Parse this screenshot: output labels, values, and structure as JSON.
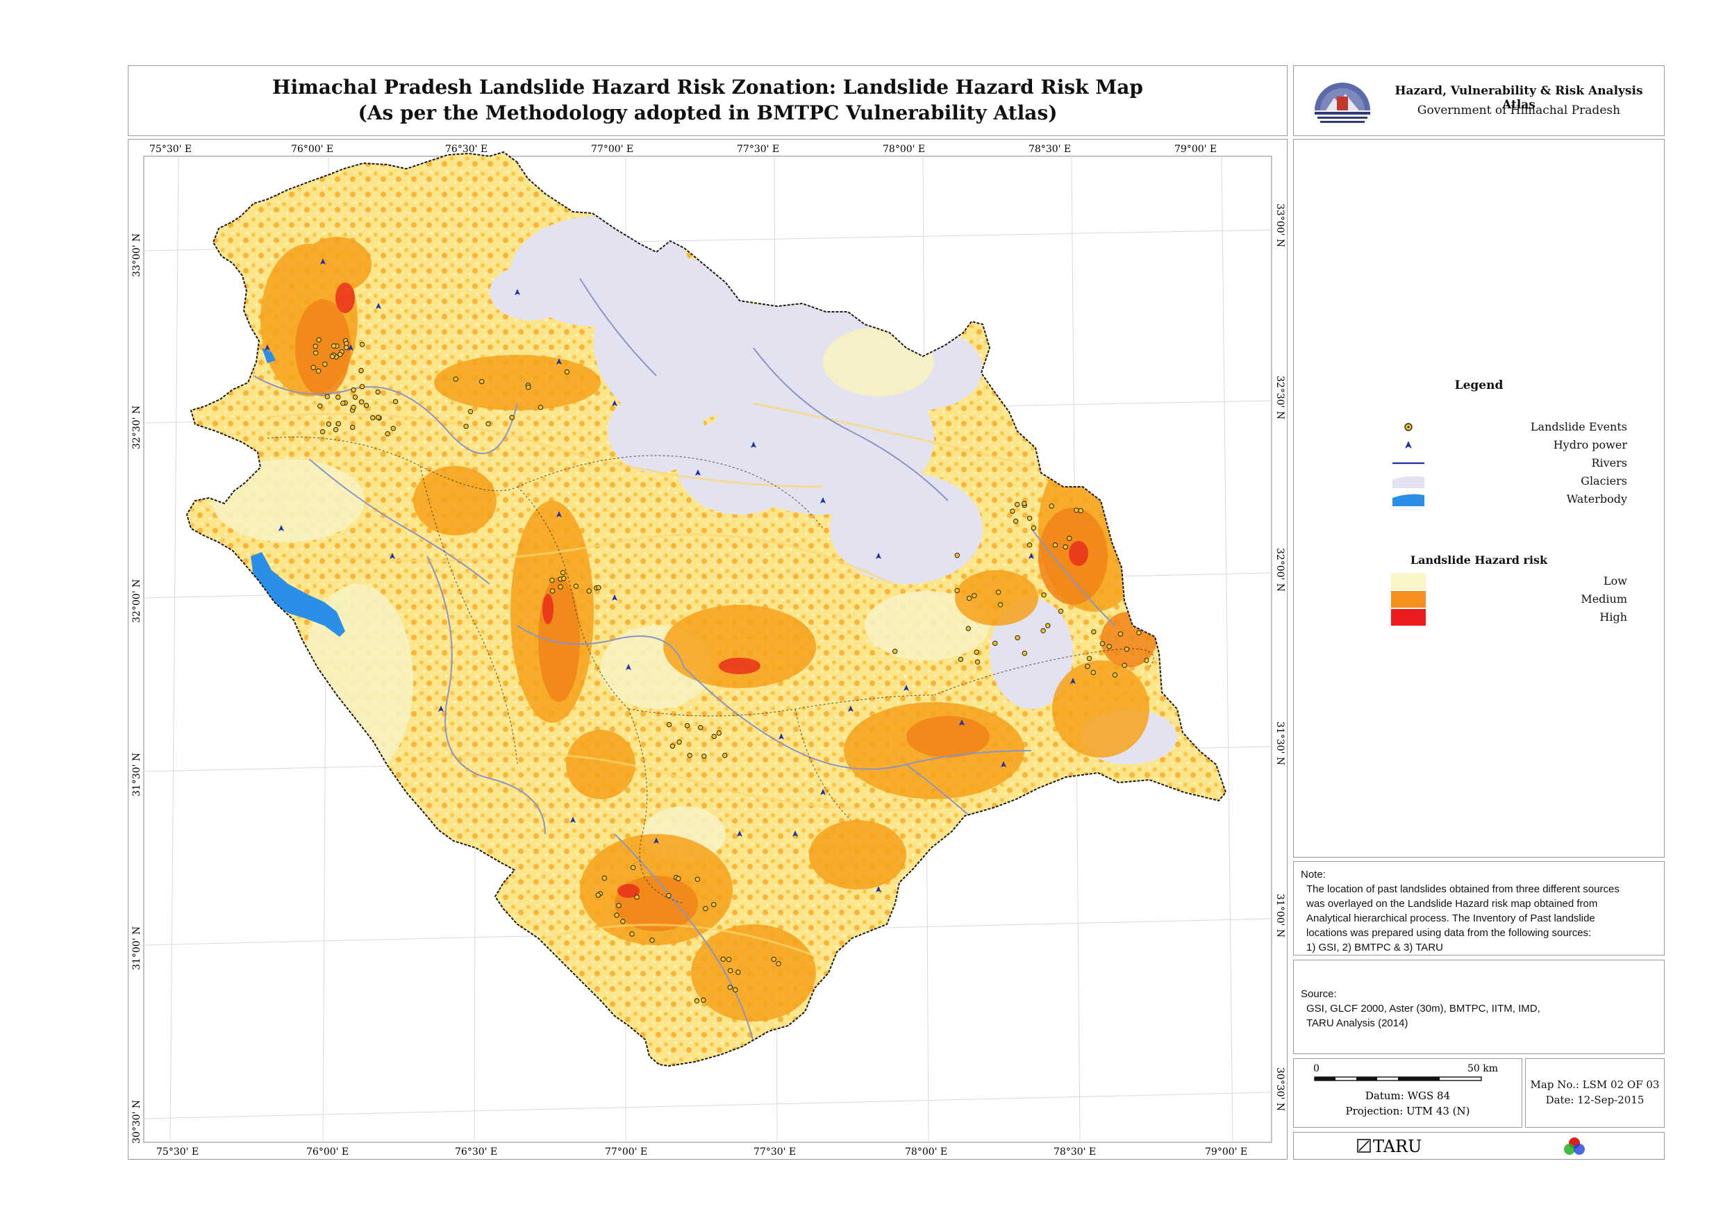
{
  "title": {
    "line1": "Himachal Pradesh Landslide Hazard Risk Zonation: Landslide Hazard Risk Map",
    "line2": "(As per the Methodology adopted in BMTPC Vulnerability Atlas)"
  },
  "atlas": {
    "name": "Hazard, Vulnerability & Risk Analysis Atlas",
    "government": "Government of Himachal Pradesh"
  },
  "map": {
    "top_longitudes": [
      "75°30' E",
      "76°00' E",
      "76°30' E",
      "77°00' E",
      "77°30' E",
      "78°00' E",
      "78°30' E",
      "79°00' E"
    ],
    "bottom_longitudes": [
      "75°30' E",
      "76°00' E",
      "76°30' E",
      "77°00' E",
      "77°30' E",
      "78°00' E",
      "78°30' E",
      "79°00' E"
    ],
    "left_latitudes": [
      "33°00' N",
      "32°30' N",
      "32°00' N",
      "31°30' N",
      "31°00' N",
      "30°30' N"
    ],
    "right_latitudes": [
      "33°00' N",
      "32°30' N",
      "32°00' N",
      "31°30' N",
      "31°00' N",
      "30°30' N"
    ],
    "colors": {
      "low": "#f7f2c0",
      "low_mid": "#fde58a",
      "medium_light": "#fcc545",
      "medium": "#f7a21b",
      "medium_dark": "#f08417",
      "high": "#e9281b",
      "glacier": "#e2e2f0",
      "waterbody": "#2b8fe8",
      "river": "#8a95c4",
      "border": "#1a1a1a"
    }
  },
  "legend": {
    "title": "Legend",
    "items": [
      {
        "label": "Landslide Events",
        "icon": "landslide-event-dot"
      },
      {
        "label": "Hydro power",
        "icon": "hydro-power-triangle"
      },
      {
        "label": "Rivers",
        "icon": "river-line"
      },
      {
        "label": "Glaciers",
        "icon": "glacier-patch"
      },
      {
        "label": "Waterbody",
        "icon": "waterbody-patch"
      }
    ],
    "risk_title": "Landslide Hazard risk",
    "risk_items": [
      {
        "label": "Low",
        "color": "#fbf6c8"
      },
      {
        "label": "Medium",
        "color": "#f7911d"
      },
      {
        "label": "High",
        "color": "#ee1c1c"
      }
    ]
  },
  "note": {
    "heading": "Note:",
    "lines": [
      "The location of past landslides obtained from three different sources",
      "was overlayed on the Landslide Hazard risk map obtained from",
      "Analytical hierarchical process. The Inventory of Past landslide",
      "locations was prepared using data from the following sources:",
      "1) GSI, 2) BMTPC & 3) TARU"
    ]
  },
  "source": {
    "heading": "Source:",
    "lines": [
      "GSI, GLCF 2000, Aster (30m), BMTPC, IITM, IMD,",
      "TARU Analysis (2014)"
    ]
  },
  "scale": {
    "start": "0",
    "end": "50 km",
    "datum": "Datum: WGS 84",
    "projection": "Projection: UTM 43 (N)"
  },
  "map_info": {
    "map_no": "Map No.: LSM 02 OF 03",
    "date": "Date: 12-Sep-2015"
  },
  "credit": {
    "org": "TARU"
  }
}
